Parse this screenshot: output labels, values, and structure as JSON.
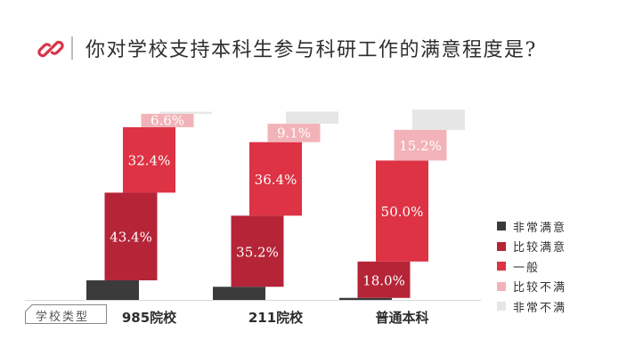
{
  "header": {
    "title": "你对学校支持本科生参与科研工作的满意程度是?",
    "logo_icon": "chain-link-icon"
  },
  "axis_badge": {
    "label": "学校类型"
  },
  "chart_data": {
    "type": "bar",
    "layout": "staggered-stacked",
    "title": "你对学校支持本科生参与科研工作的满意程度是?",
    "xlabel": "学校类型",
    "categories": [
      "985院校",
      "211院校",
      "普通本科"
    ],
    "series": [
      {
        "name": "非常满意",
        "color": "#3b3b3b",
        "values": [
          9.7,
          6.5,
          1.0
        ]
      },
      {
        "name": "比较满意",
        "color": "#b52437",
        "values": [
          43.4,
          35.2,
          18.0
        ]
      },
      {
        "name": "一般",
        "color": "#dd3344",
        "values": [
          32.4,
          36.4,
          50.0
        ]
      },
      {
        "name": "比较不满",
        "color": "#f2b3b8",
        "values": [
          6.6,
          9.1,
          15.2
        ]
      },
      {
        "name": "非常不满",
        "color": "#e6e6e6",
        "values": [
          1.0,
          6.0,
          10.0
        ]
      }
    ],
    "labels": [
      [
        "",
        "43.4%",
        "32.4%",
        "6.6%",
        ""
      ],
      [
        "",
        "35.2%",
        "36.4%",
        "9.1%",
        ""
      ],
      [
        "",
        "18.0%",
        "50.0%",
        "15.2%",
        ""
      ]
    ],
    "legend_position": "right",
    "grid": false
  }
}
